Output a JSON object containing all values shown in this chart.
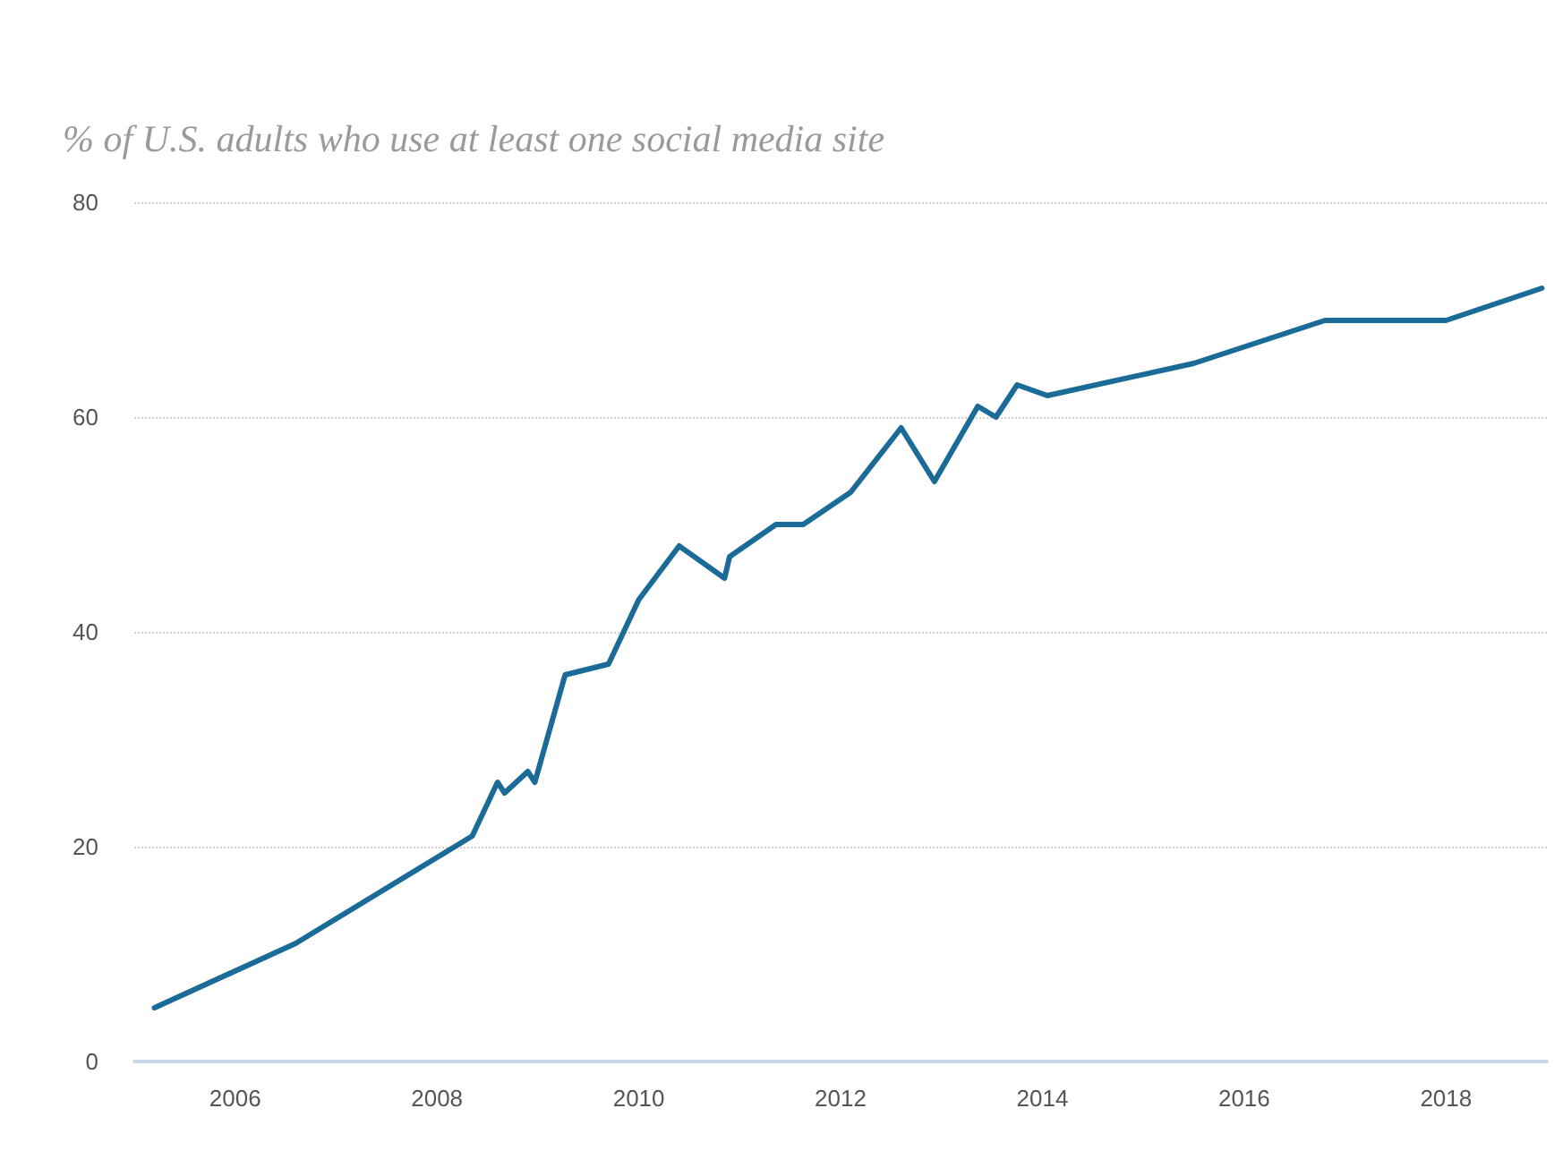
{
  "chart_data": {
    "type": "line",
    "title": "% of U.S. adults who use at least one social media site",
    "x": [
      2005.2,
      2006.6,
      2008.35,
      2008.6,
      2008.67,
      2008.9,
      2008.97,
      2009.27,
      2009.7,
      2010.0,
      2010.4,
      2010.7,
      2010.85,
      2010.9,
      2011.36,
      2011.63,
      2012.1,
      2012.6,
      2012.93,
      2013.36,
      2013.54,
      2013.75,
      2014.05,
      2015.5,
      2016.8,
      2018.0,
      2018.95
    ],
    "series": [
      {
        "color": "#1b6b98",
        "values": [
          5,
          11,
          21,
          26,
          25,
          27,
          26,
          36,
          37,
          43,
          48,
          46,
          45,
          47,
          50,
          50,
          53,
          59,
          54,
          61,
          60,
          63,
          62,
          65,
          69,
          69,
          72
        ]
      }
    ],
    "xlim": [
      2005,
      2019
    ],
    "xticks": [
      2006,
      2008,
      2010,
      2012,
      2014,
      2016,
      2018
    ],
    "ylim": [
      0,
      80
    ],
    "yticks": [
      0,
      20,
      40,
      60,
      80
    ],
    "grid": "y",
    "marker": "none",
    "line_style": "solid"
  }
}
